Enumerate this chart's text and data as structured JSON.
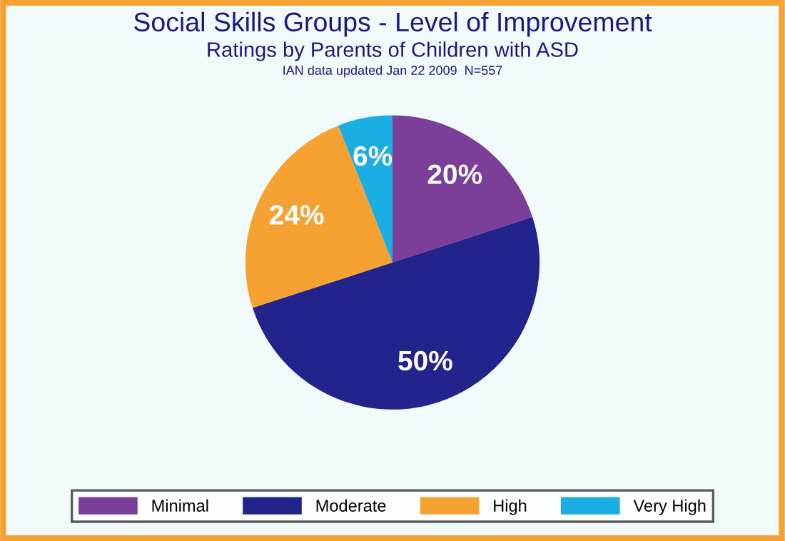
{
  "chart_data": {
    "type": "pie",
    "title": "Social Skills Groups - Level of Improvement",
    "subtitle": "Ratings by Parents of Children with ASD",
    "annotations": [
      "IAN data updated Jan 22 2009  N=557"
    ],
    "categories": [
      "Minimal",
      "Moderate",
      "High",
      "Very High"
    ],
    "values": [
      20,
      50,
      24,
      6
    ],
    "colors": [
      "#7b3f9a",
      "#23238c",
      "#f5a232",
      "#1aaee2"
    ],
    "value_labels": [
      "20%",
      "50%",
      "24%",
      "6%"
    ],
    "legend": "bottom"
  }
}
